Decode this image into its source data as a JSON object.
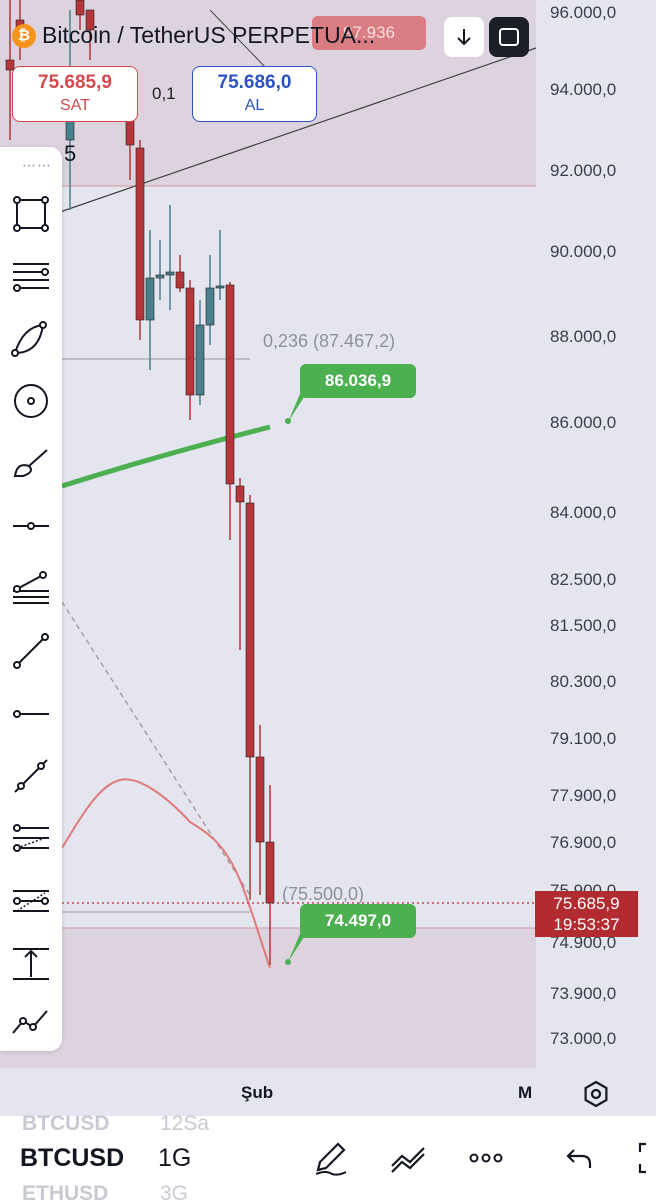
{
  "header": {
    "title": "Bitcoin / TetherUS PERPETUA...",
    "coin_icon_glyph": "₿",
    "sell_price": "75.685,9",
    "sell_label": "SAT",
    "buy_price": "75.686,0",
    "buy_label": "AL",
    "spread": "0,1",
    "top_tag": "97.936",
    "partial_value": "5"
  },
  "yaxis": {
    "labels": [
      "96.000,0",
      "94.000,0",
      "92.000,0",
      "90.000,0",
      "88.000,0",
      "86.000,0",
      "84.000,0",
      "82.500,0",
      "81.500,0",
      "80.300,0",
      "79.100,0",
      "77.900,0",
      "76.900,0",
      "75.900,0",
      "74.900,0",
      "73.900,0",
      "73.000,0"
    ]
  },
  "chart": {
    "fib_label_1": "0,236 (87.467,2)",
    "fib_label_2": "(75.500,0)",
    "tag_upper": "86.036,9",
    "tag_lower": "74.497,0",
    "current_price": "75.685,9",
    "countdown": "19:53:37"
  },
  "xaxis": {
    "label_1": "Şub",
    "label_2": "M"
  },
  "bottom": {
    "symbol": "BTCUSD",
    "timeframe": "1G",
    "symbol_above": "BTCUSD",
    "timeframe_above": "12Sa",
    "symbol_below": "ETHUSD",
    "timeframe_below": "3G"
  },
  "colors": {
    "up": "#4a7f8c",
    "down": "#b5353a",
    "accent_green": "#4caf50"
  },
  "icons": [
    "coin-icon",
    "download-icon",
    "fullscreen-icon",
    "rectangle-tool-icon",
    "lines-tool-icon",
    "arc-tool-icon",
    "circle-tool-icon",
    "brush-tool-icon",
    "horizontal-ray-icon",
    "fib-tool-icon",
    "trendline-icon",
    "horizontal-line-icon",
    "parallel-channel-icon",
    "fib-extension-icon",
    "pitchfork-icon",
    "measure-icon",
    "forecast-icon",
    "gear-icon",
    "pen-icon",
    "indicators-icon",
    "more-icon",
    "undo-icon"
  ]
}
